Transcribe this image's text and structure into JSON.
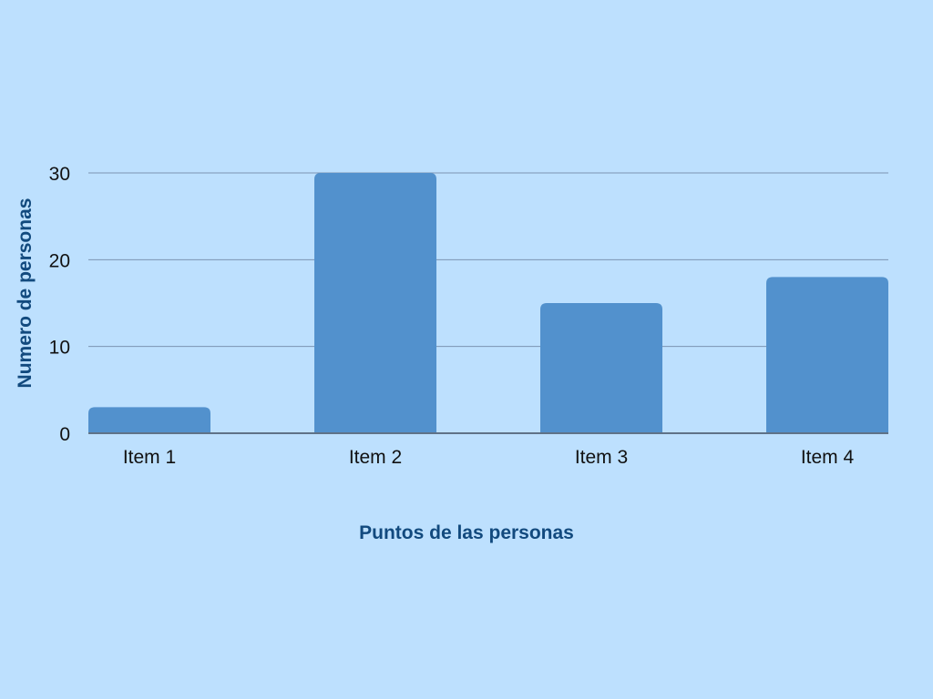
{
  "chart_data": {
    "type": "bar",
    "title": "",
    "categories": [
      "Item 1",
      "Item 2",
      "Item 3",
      "Item 4"
    ],
    "values": [
      3,
      30,
      15,
      18
    ],
    "xlabel": "Puntos de las personas",
    "ylabel": "Numero de personas",
    "ylim": [
      0,
      30
    ],
    "yticks": [
      "0",
      "10",
      "20",
      "30"
    ],
    "grid": true
  },
  "colors": {
    "background": "#bde0fe",
    "bar": "#5291cd",
    "axis_title": "#124a7e",
    "grid": "#7d95b3"
  }
}
